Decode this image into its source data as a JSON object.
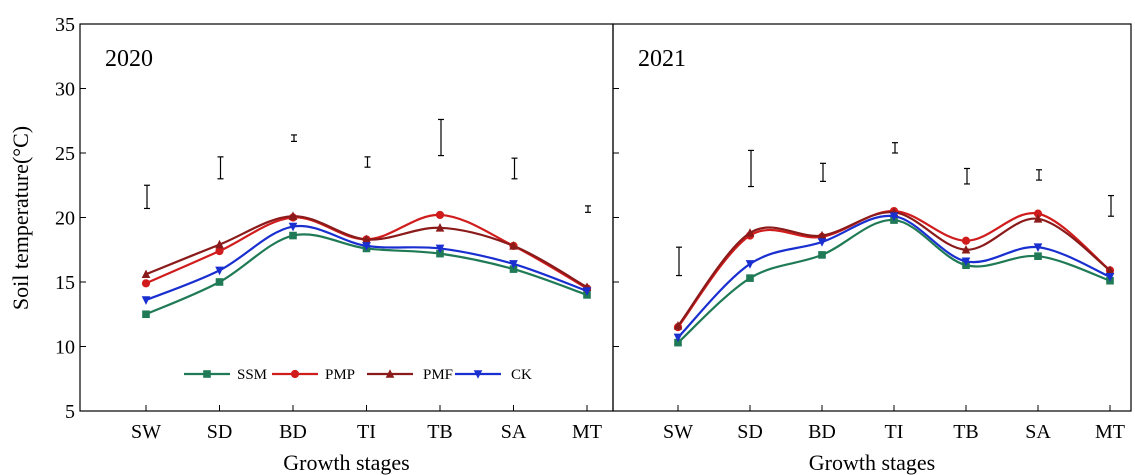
{
  "chart_data": {
    "type": "line",
    "ylabel": "Soil temperature(°C)",
    "ylim": [
      5,
      35
    ],
    "yticks": [
      5,
      10,
      15,
      20,
      25,
      30,
      35
    ],
    "legend_position": "bottom-left",
    "grid": false,
    "panels": [
      {
        "title": "2020",
        "xlabel": "Growth stages",
        "categories": [
          "SW",
          "SD",
          "BD",
          "TI",
          "TB",
          "SA",
          "MT"
        ],
        "series": [
          {
            "name": "SSM",
            "color": "#1f7a55",
            "marker": "square",
            "values": [
              12.5,
              15.0,
              18.6,
              17.6,
              17.2,
              16.0,
              14.0
            ]
          },
          {
            "name": "PMP",
            "color": "#d01c1c",
            "marker": "circle",
            "values": [
              14.9,
              17.4,
              20.0,
              18.3,
              20.2,
              17.8,
              14.5
            ]
          },
          {
            "name": "PMF",
            "color": "#8b1a1a",
            "marker": "triangle-up",
            "values": [
              15.6,
              17.9,
              20.1,
              18.3,
              19.2,
              17.8,
              14.6
            ]
          },
          {
            "name": "CK",
            "color": "#1a2fd0",
            "marker": "triangle-down",
            "values": [
              13.6,
              15.9,
              19.3,
              17.8,
              17.6,
              16.4,
              14.3
            ]
          }
        ],
        "error_bars": [
          {
            "category": "SW",
            "low": 20.7,
            "high": 22.5
          },
          {
            "category": "SD",
            "low": 23.0,
            "high": 24.7
          },
          {
            "category": "BD",
            "low": 25.9,
            "high": 26.4
          },
          {
            "category": "TI",
            "low": 23.9,
            "high": 24.7
          },
          {
            "category": "TB",
            "low": 24.8,
            "high": 27.6
          },
          {
            "category": "SA",
            "low": 23.0,
            "high": 24.6
          },
          {
            "category": "MT",
            "low": 20.4,
            "high": 20.9
          }
        ]
      },
      {
        "title": "2021",
        "xlabel": "Growth stages",
        "categories": [
          "SW",
          "SD",
          "BD",
          "TI",
          "TB",
          "SA",
          "MT"
        ],
        "series": [
          {
            "name": "SSM",
            "color": "#1f7a55",
            "marker": "square",
            "values": [
              10.3,
              15.3,
              17.1,
              19.8,
              16.3,
              17.0,
              15.1
            ]
          },
          {
            "name": "PMP",
            "color": "#d01c1c",
            "marker": "circle",
            "values": [
              11.5,
              18.6,
              18.5,
              20.5,
              18.2,
              20.3,
              15.9
            ]
          },
          {
            "name": "PMF",
            "color": "#8b1a1a",
            "marker": "triangle-up",
            "values": [
              11.6,
              18.8,
              18.6,
              20.4,
              17.5,
              19.9,
              15.9
            ]
          },
          {
            "name": "CK",
            "color": "#1a2fd0",
            "marker": "triangle-down",
            "values": [
              10.7,
              16.4,
              18.1,
              20.1,
              16.6,
              17.7,
              15.4
            ]
          }
        ],
        "error_bars": [
          {
            "category": "SW",
            "low": 15.5,
            "high": 17.7
          },
          {
            "category": "SD",
            "low": 22.4,
            "high": 25.2
          },
          {
            "category": "BD",
            "low": 22.8,
            "high": 24.2
          },
          {
            "category": "TI",
            "low": 25.0,
            "high": 25.8
          },
          {
            "category": "TB",
            "low": 22.6,
            "high": 23.8
          },
          {
            "category": "SA",
            "low": 22.9,
            "high": 23.7
          },
          {
            "category": "MT",
            "low": 20.1,
            "high": 21.7
          }
        ]
      }
    ]
  }
}
